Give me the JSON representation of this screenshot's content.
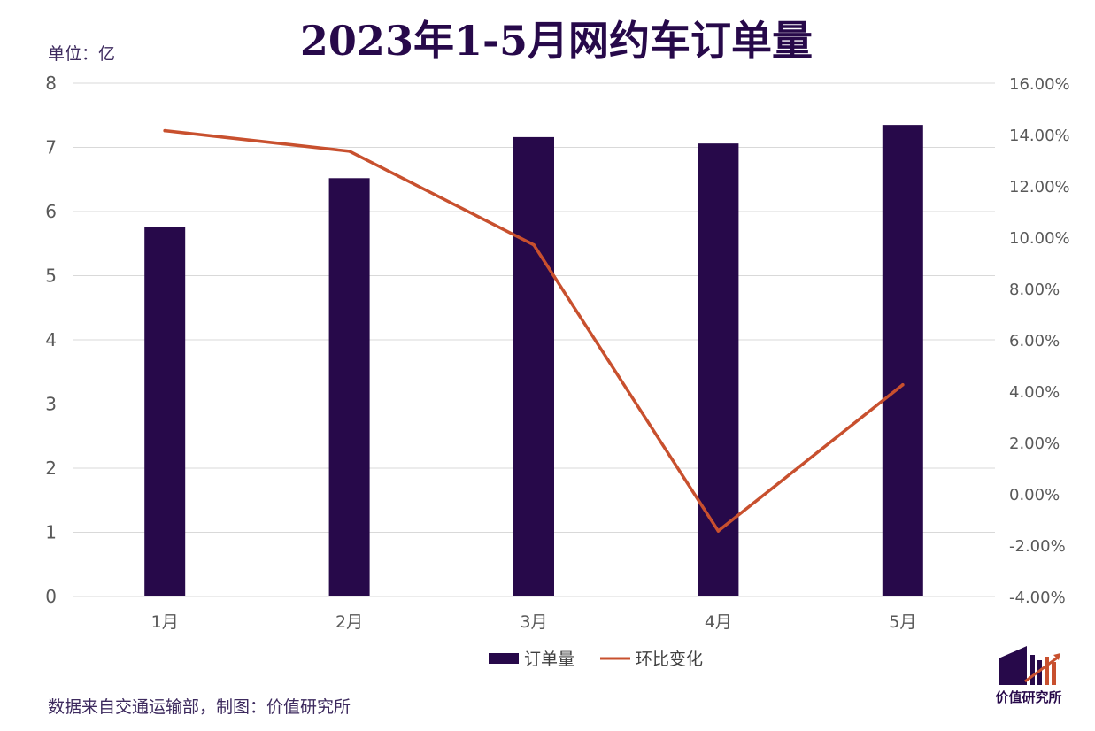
{
  "title": "2023年1-5月网约车订单量",
  "unit_label": "单位：亿",
  "source": "数据来自交通运输部，制图：价值研究所",
  "brand": "价值研究所",
  "colors": {
    "bar": "#27094a",
    "line": "#c8502e",
    "grid": "#d9d9d9",
    "axis_text": "#595959"
  },
  "chart_data": {
    "type": "bar",
    "categories": [
      "1月",
      "2月",
      "3月",
      "4月",
      "5月"
    ],
    "series": [
      {
        "name": "订单量",
        "type": "bar",
        "axis": "left",
        "values": [
          5.76,
          6.52,
          7.16,
          7.06,
          7.35
        ]
      },
      {
        "name": "环比变化",
        "type": "line",
        "axis": "right",
        "values": [
          0.1415,
          0.1335,
          0.097,
          -0.0145,
          0.0425
        ]
      }
    ],
    "y_left": {
      "min": 0,
      "max": 8,
      "step": 1,
      "ticks": [
        "0",
        "1",
        "2",
        "3",
        "4",
        "5",
        "6",
        "7",
        "8"
      ]
    },
    "y_right": {
      "min": -0.04,
      "max": 0.16,
      "step": 0.02,
      "ticks": [
        "-4.00%",
        "-2.00%",
        "0.00%",
        "2.00%",
        "4.00%",
        "6.00%",
        "8.00%",
        "10.00%",
        "12.00%",
        "14.00%",
        "16.00%"
      ]
    },
    "grid": true,
    "legend_position": "bottom"
  }
}
